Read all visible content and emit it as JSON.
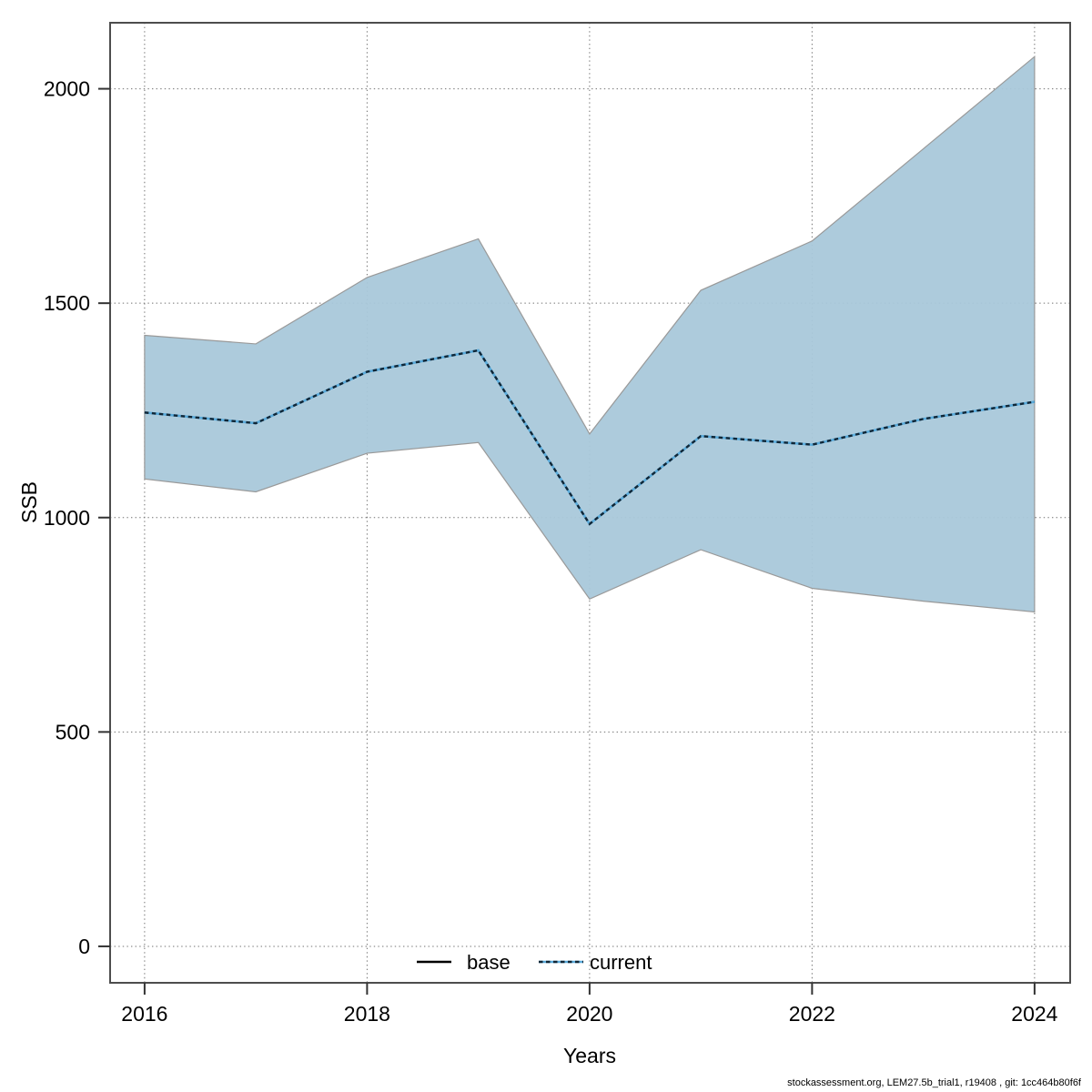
{
  "chart_data": {
    "type": "area",
    "title": "",
    "xlabel": "Years",
    "ylabel": "SSB",
    "x": [
      2016,
      2017,
      2018,
      2019,
      2020,
      2021,
      2022,
      2023,
      2024
    ],
    "series": [
      {
        "name": "base",
        "line_style": "solid",
        "color": "#000000",
        "values": [
          1245,
          1220,
          1340,
          1390,
          985,
          1190,
          1170,
          1230,
          1270
        ],
        "note": "coincides with current line"
      },
      {
        "name": "current",
        "line_style": "dotted",
        "color": "#102636",
        "underlay_color": "#5aabdb",
        "values": [
          1245,
          1220,
          1340,
          1390,
          985,
          1190,
          1170,
          1230,
          1270
        ]
      }
    ],
    "band": {
      "belongs_to": "current",
      "lower": [
        1090,
        1060,
        1150,
        1175,
        810,
        925,
        835,
        805,
        780
      ],
      "upper": [
        1425,
        1405,
        1560,
        1650,
        1195,
        1530,
        1645,
        1860,
        2075
      ],
      "fill": "#a9c8da",
      "stroke": "#999999"
    },
    "x_ticks": [
      "2016",
      "2018",
      "2020",
      "2022",
      "2024"
    ],
    "x_tick_values": [
      2016,
      2018,
      2020,
      2022,
      2024
    ],
    "y_ticks": [
      "0",
      "500",
      "1000",
      "1500",
      "2000"
    ],
    "y_tick_values": [
      0,
      500,
      1000,
      1500,
      2000
    ],
    "xlim": [
      2015.69,
      2024.32
    ],
    "ylim": [
      -85,
      2154
    ],
    "grid": "dotted",
    "grid_color": "#707070",
    "border_color": "#4d4d4d",
    "legend_position": "bottom-center"
  },
  "legend": {
    "items": [
      {
        "label": "base",
        "swatch": "solid-black-line"
      },
      {
        "label": "current",
        "swatch": "dotted-blue-line"
      }
    ]
  },
  "footer": {
    "credit": "stockassessment.org, LEM27.5b_trial1, r19408 , git: 1cc464b80f6f"
  }
}
